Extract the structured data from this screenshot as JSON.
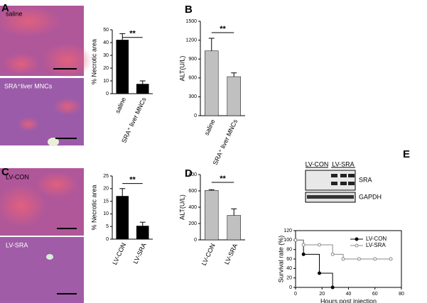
{
  "chart_data": [
    {
      "type": "bar",
      "panel": "A",
      "ylabel": "% Necrotic area",
      "categories": [
        "saline",
        "SRA⁺ liver MNCs"
      ],
      "values": [
        42,
        7.5
      ],
      "errors": [
        5,
        2.5
      ],
      "color": "#000000",
      "ylim": [
        0,
        50
      ],
      "yticks": [
        0,
        10,
        20,
        30,
        40,
        50
      ],
      "annotation": "**"
    },
    {
      "type": "bar",
      "panel": "B",
      "ylabel": "ALT(U/L)",
      "categories": [
        "saline",
        "SRA⁺ liver MNCs"
      ],
      "values": [
        1030,
        620
      ],
      "errors": [
        200,
        60
      ],
      "color": "#c0c0c0",
      "ylim": [
        0,
        1500
      ],
      "yticks": [
        0,
        300,
        600,
        900,
        1200,
        1500
      ],
      "annotation": "**"
    },
    {
      "type": "bar",
      "panel": "C",
      "ylabel": "% Necrotic area",
      "categories": [
        "LV-CON",
        "LV-SRA"
      ],
      "values": [
        17,
        5.2
      ],
      "errors": [
        3,
        1.5
      ],
      "color": "#000000",
      "ylim": [
        0,
        25
      ],
      "yticks": [
        0,
        5,
        10,
        15,
        20,
        25
      ],
      "annotation": "**"
    },
    {
      "type": "bar",
      "panel": "D",
      "ylabel": "ALT(U/L)",
      "categories": [
        "LV-CON",
        "LV-SRA"
      ],
      "values": [
        605,
        300
      ],
      "errors": [
        10,
        80
      ],
      "color": "#c0c0c0",
      "ylim": [
        0,
        800
      ],
      "yticks": [
        0,
        200,
        400,
        600,
        800
      ],
      "annotation": "**"
    },
    {
      "type": "line",
      "panel": "E",
      "xlabel": "Hours post injection",
      "ylabel": "Survival rate (%)",
      "legend": "upper right",
      "series": [
        {
          "name": "LV-CON",
          "color": "#000000",
          "x": [
            0,
            6,
            18,
            28
          ],
          "values": [
            100,
            70,
            30,
            0
          ]
        },
        {
          "name": "LV-SRA",
          "color": "#888888",
          "x": [
            0,
            6,
            18,
            28,
            36,
            48,
            60,
            72
          ],
          "values": [
            100,
            90,
            90,
            70,
            60,
            60,
            60,
            60
          ]
        }
      ],
      "xlim": [
        0,
        80
      ],
      "xticks": [
        0,
        20,
        40,
        60,
        80
      ],
      "ylim": [
        0,
        120
      ],
      "yticks": [
        0,
        20,
        40,
        60,
        80,
        100,
        120
      ]
    }
  ],
  "micrographs": [
    {
      "label": "saline"
    },
    {
      "label": "SRA⁺liver MNCs"
    },
    {
      "label": "LV-CON"
    },
    {
      "label": "LV-SRA"
    }
  ],
  "blot": {
    "lanes": [
      "LV-CON",
      "LV-SRA"
    ],
    "bands": [
      "SRA",
      "GAPDH"
    ]
  }
}
